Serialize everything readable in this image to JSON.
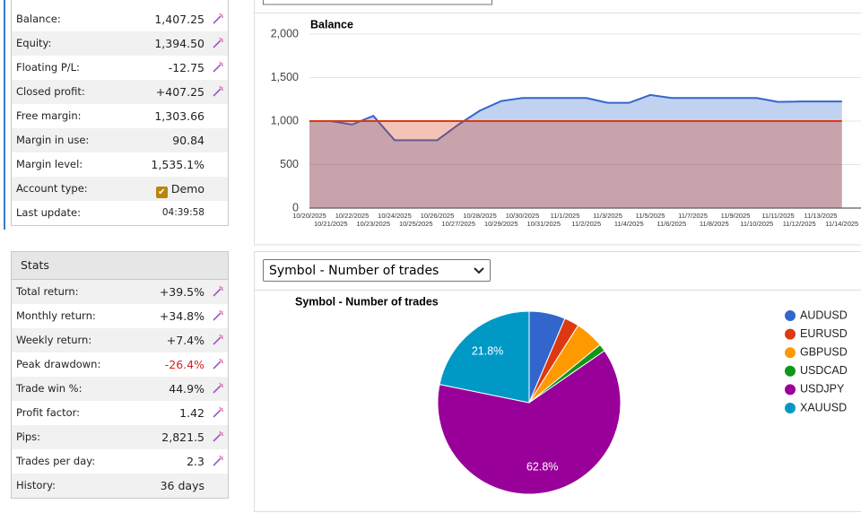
{
  "account": {
    "rows": [
      {
        "label": "Balance:",
        "value": "1,407.25",
        "icon": true
      },
      {
        "label": "Equity:",
        "value": "1,394.50",
        "icon": true
      },
      {
        "label": "Floating P/L:",
        "value": "-12.75",
        "icon": true
      },
      {
        "label": "Closed profit:",
        "value": "+407.25",
        "icon": true
      },
      {
        "label": "Free margin:",
        "value": "1,303.66"
      },
      {
        "label": "Margin in use:",
        "value": "90.84"
      },
      {
        "label": "Margin level:",
        "value": "1,535.1%"
      },
      {
        "label": "Account type:",
        "value": "Demo",
        "checkbox": true
      },
      {
        "label": "Last update:",
        "value": "04:39:58",
        "small": true
      }
    ]
  },
  "stats": {
    "title": "Stats",
    "rows": [
      {
        "label": "Total return:",
        "value": "+39.5%",
        "icon": true
      },
      {
        "label": "Monthly return:",
        "value": "+34.8%",
        "icon": true
      },
      {
        "label": "Weekly return:",
        "value": "+7.4%",
        "icon": true
      },
      {
        "label": "Peak drawdown:",
        "value": "-26.4%",
        "icon": true,
        "color": "#d62020"
      },
      {
        "label": "Trade win %:",
        "value": "44.9%",
        "icon": true
      },
      {
        "label": "Profit factor:",
        "value": "1.42",
        "icon": true
      },
      {
        "label": "Pips:",
        "value": "2,821.5",
        "icon": true
      },
      {
        "label": "Trades per day:",
        "value": "2.3",
        "icon": true
      },
      {
        "label": "History:",
        "value": "36 days"
      }
    ]
  },
  "selector": "Symbol - Number of trades",
  "chart_data": [
    {
      "type": "area",
      "title": "Balance",
      "categories": [
        "10/20/2025",
        "10/21/2025",
        "10/22/2025",
        "10/23/2025",
        "10/24/2025",
        "10/25/2025",
        "10/26/2025",
        "10/27/2025",
        "10/28/2025",
        "10/29/2025",
        "10/30/2025",
        "10/31/2025",
        "11/1/2025",
        "11/2/2025",
        "11/3/2025",
        "11/4/2025",
        "11/5/2025",
        "11/6/2025",
        "11/7/2025",
        "11/8/2025",
        "11/9/2025",
        "11/10/2025",
        "11/11/2025",
        "11/12/2025",
        "11/13/2025",
        "11/14/2025"
      ],
      "series": [
        {
          "color": "#3366cc",
          "values": [
            1000,
            1000,
            960,
            1060,
            780,
            780,
            780,
            960,
            1120,
            1230,
            1265,
            1265,
            1265,
            1265,
            1210,
            1210,
            1300,
            1265,
            1265,
            1265,
            1265,
            1265,
            1220,
            1225,
            1225,
            1225
          ]
        },
        {
          "color": "#dc3912",
          "values": [
            1000,
            1000,
            1000,
            1000,
            1000,
            1000,
            1000,
            1000,
            1000,
            1000,
            1000,
            1000,
            1000,
            1000,
            1000,
            1000,
            1000,
            1000,
            1000,
            1000,
            1000,
            1000,
            1000,
            1000,
            1000,
            1000
          ]
        }
      ],
      "ylim": [
        0,
        2000
      ],
      "yticks": [
        0,
        500,
        {
          "value": 1000,
          "label": "1,000"
        },
        {
          "value": 1500,
          "label": "1,500"
        },
        {
          "value": 2000,
          "label": "2,000"
        }
      ],
      "grid": true
    },
    {
      "type": "pie",
      "title": "Symbol - Number of trades",
      "categories": [
        "AUDUSD",
        "EURUSD",
        "GBPUSD",
        "USDCAD",
        "USDJPY",
        "XAUUSD"
      ],
      "values": [
        6.4,
        2.6,
        5.1,
        1.3,
        62.8,
        21.8
      ],
      "value_labels": [
        null,
        null,
        null,
        null,
        "62.8%",
        "21.8%"
      ],
      "colors": [
        "#3366cc",
        "#dc3912",
        "#ff9900",
        "#109618",
        "#990099",
        "#0099c6"
      ],
      "legend": "right"
    }
  ]
}
